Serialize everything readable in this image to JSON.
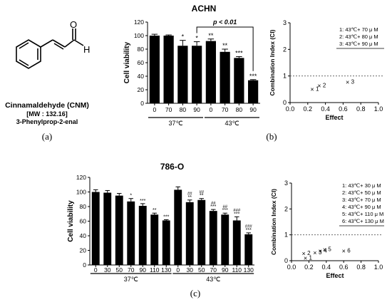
{
  "molecule": {
    "name": "Cinnamaldehyde (CNM)",
    "mw": "[MW : 132.16]",
    "iupac": "3-Phenylprop-2-enal",
    "atom_O": "O",
    "atom_H": "H"
  },
  "panel_labels": {
    "a": "(a)",
    "b": "(b)",
    "c": "(c)"
  },
  "chart_data": [
    {
      "type": "bar",
      "title": "ACHN",
      "xlabel": "",
      "ylabel": "Cell viability",
      "ylim": [
        0,
        120
      ],
      "yticks": [
        "0",
        "20",
        "40",
        "60",
        "80",
        "100",
        "120"
      ],
      "categories": [
        "0",
        "70",
        "80",
        "90",
        "0",
        "70",
        "80",
        "90"
      ],
      "values": [
        100,
        100,
        85,
        85,
        92,
        76,
        67,
        34
      ],
      "errors": [
        2,
        1,
        8,
        6,
        3,
        4,
        2,
        1
      ],
      "sig": [
        "",
        "",
        "*",
        "*",
        "**",
        "**",
        "***",
        "***"
      ],
      "sig2": [
        "",
        "",
        "",
        "",
        "",
        "",
        "",
        ""
      ],
      "groups": [
        {
          "label": "37℃",
          "from": 0,
          "to": 3
        },
        {
          "label": "43℃",
          "from": 4,
          "to": 7
        }
      ],
      "bracket": {
        "label": "p < 0.01",
        "from": 3,
        "to": 7
      },
      "bar_color": "#000000"
    },
    {
      "type": "scatter",
      "xlabel": "Effect",
      "ylabel": "Combination Index (CI)",
      "xlim": [
        0,
        1
      ],
      "ylim": [
        0,
        3
      ],
      "xticks": [
        "0.0",
        "0.2",
        "0.4",
        "0.6",
        "0.8",
        "1.0"
      ],
      "yticks": [
        "0",
        "1",
        "2",
        "3"
      ],
      "reference_line": 1,
      "points": [
        {
          "label": "1",
          "x": 0.25,
          "y": 0.5
        },
        {
          "label": "2",
          "x": 0.33,
          "y": 0.63
        },
        {
          "label": "3",
          "x": 0.65,
          "y": 0.77
        }
      ],
      "legend": [
        "1: 43℃+ 70 μ M",
        "2: 43℃+ 80 μ M",
        "3: 43℃+ 90 μ M"
      ],
      "legend_position": "top-right"
    },
    {
      "type": "bar",
      "title": "786-O",
      "xlabel": "",
      "ylabel": "Cell viability",
      "ylim": [
        0,
        120
      ],
      "yticks": [
        "0",
        "20",
        "40",
        "60",
        "80",
        "100",
        "120"
      ],
      "categories": [
        "0",
        "30",
        "50",
        "70",
        "90",
        "110",
        "130",
        "0",
        "30",
        "50",
        "70",
        "90",
        "110",
        "130"
      ],
      "values": [
        100,
        99,
        95,
        87,
        81,
        69,
        61,
        103,
        86,
        89,
        74,
        69,
        61,
        42
      ],
      "errors": [
        3,
        3,
        3,
        4,
        3,
        2,
        1,
        4,
        3,
        2,
        2,
        2,
        5,
        2
      ],
      "sig": [
        "",
        "",
        "",
        "*",
        "***",
        "**",
        "***",
        "",
        "**",
        "**",
        "***",
        "***",
        "***",
        "***"
      ],
      "sig2": [
        "",
        "",
        "",
        "",
        "",
        "",
        "",
        "",
        "##",
        "##",
        "##",
        "##",
        "###",
        "###"
      ],
      "groups": [
        {
          "label": "37℃",
          "from": 0,
          "to": 6
        },
        {
          "label": "43℃",
          "from": 7,
          "to": 13
        }
      ],
      "bar_color": "#000000"
    },
    {
      "type": "scatter",
      "xlabel": "Effect",
      "ylabel": "Combination Index (CI)",
      "xlim": [
        0,
        1
      ],
      "ylim": [
        0,
        3
      ],
      "xticks": [
        "0.0",
        "0.2",
        "0.4",
        "0.6",
        "0.8",
        "1.0"
      ],
      "yticks": [
        "0",
        "1",
        "2",
        "3"
      ],
      "reference_line": 1,
      "points": [
        {
          "label": "1",
          "x": 0.16,
          "y": 0.1
        },
        {
          "label": "2",
          "x": 0.14,
          "y": 0.27
        },
        {
          "label": "3",
          "x": 0.27,
          "y": 0.3
        },
        {
          "label": "4",
          "x": 0.33,
          "y": 0.37
        },
        {
          "label": "5",
          "x": 0.38,
          "y": 0.42
        },
        {
          "label": "6",
          "x": 0.6,
          "y": 0.37
        }
      ],
      "legend": [
        "1: 43℃+ 30 μ M",
        "2: 43℃+ 50 μ M",
        "3: 43℃+ 70 μ M",
        "4: 43℃+ 90 μ M",
        "5: 43℃+ 110 μ M",
        "6: 43℃+ 130 μ M"
      ],
      "legend_position": "top-right"
    }
  ]
}
